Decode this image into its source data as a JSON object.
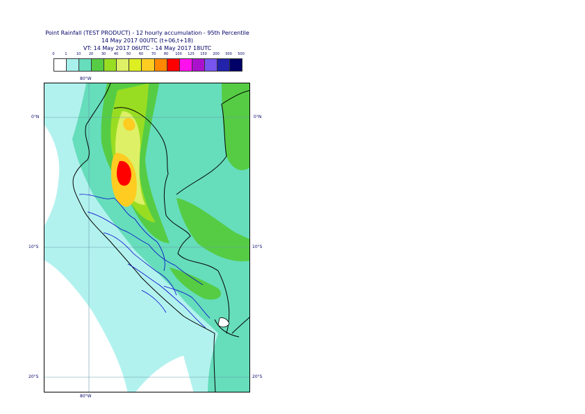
{
  "title": {
    "line1": "Point Rainfall (TEST PRODUCT) - 12 hourly accumulation - 95th Percentile",
    "line2": "14 May 2017 00UTC (t+06,t+18)",
    "line3": "VT: 14 May 2017 06UTC - 14 May 2017 18UTC"
  },
  "legend": {
    "labels": [
      "0",
      "1",
      "10",
      "20",
      "30",
      "40",
      "50",
      "60",
      "70",
      "80",
      "100",
      "125",
      "150",
      "200",
      "300",
      "500"
    ],
    "colors": [
      "#ffffff",
      "#a8f0ec",
      "#66ddbb",
      "#55cc44",
      "#99dd22",
      "#ddf066",
      "#ddee22",
      "#ffcc22",
      "#ff8800",
      "#ff0000",
      "#ff11ee",
      "#aa11cc",
      "#7755ee",
      "#2222aa",
      "#000066"
    ]
  },
  "map": {
    "lon_top": "80°W",
    "lon_bottom": "80°W",
    "lat_labels_left": [
      "0°N",
      "10°S",
      "20°S"
    ],
    "lat_labels_right": [
      "0°N",
      "10°S",
      "20°S"
    ],
    "colors": {
      "ocean_light": "#b2f2ee",
      "land_base": "#66ddbb",
      "green": "#55cc44",
      "yellow_green": "#99dd22",
      "yellow": "#ddf066",
      "orange": "#ffcc22",
      "red": "#ff0000",
      "border": "#000000",
      "region": "#0000cc",
      "grid": "#6699aa"
    }
  }
}
